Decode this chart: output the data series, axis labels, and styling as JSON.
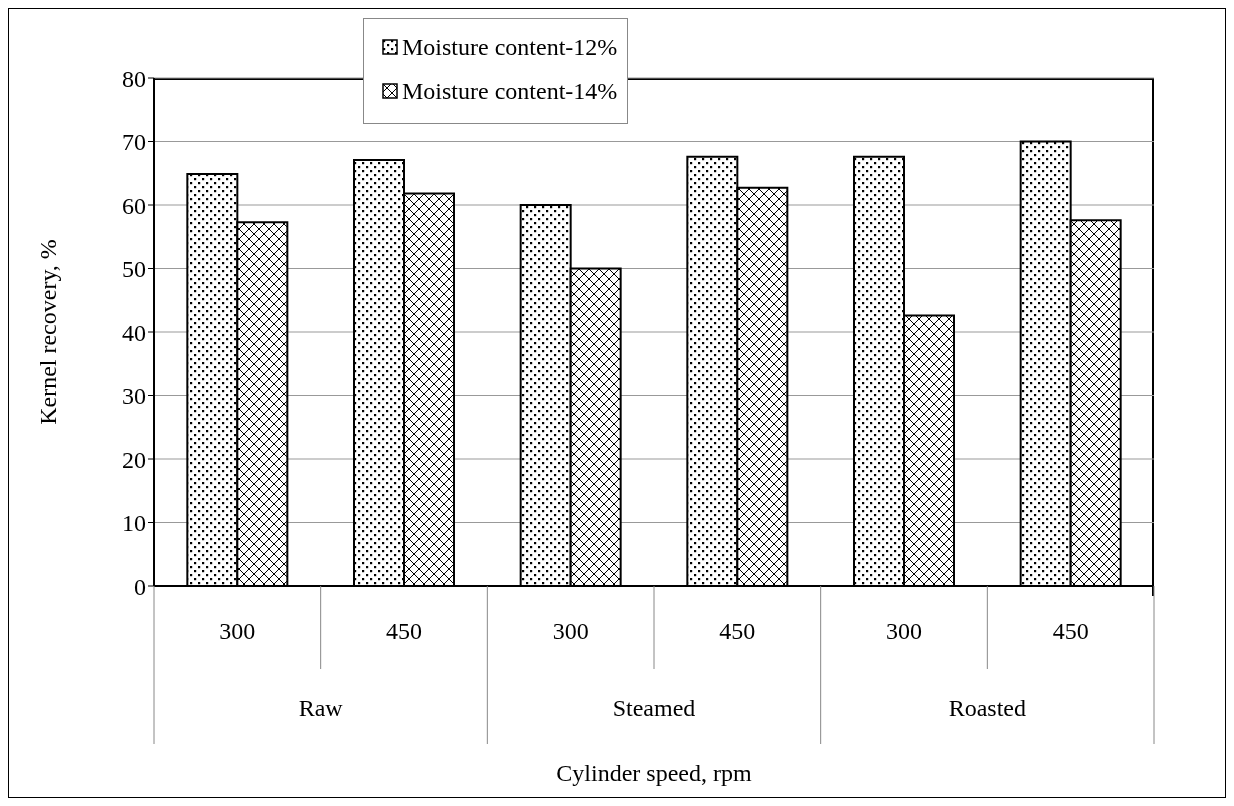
{
  "chart_data": {
    "type": "bar",
    "ylabel": "Kernel recovery, %",
    "xlabel": "Cylinder speed, rpm",
    "categories": [
      "300",
      "450",
      "300",
      "450",
      "300",
      "450"
    ],
    "annotations": [
      "Raw",
      "Steamed",
      "Roasted"
    ],
    "series": [
      {
        "name": "Moisture content-12%",
        "color": "#000000",
        "values": [
          64.9,
          67.1,
          60.0,
          67.6,
          67.6,
          70.0
        ]
      },
      {
        "name": "Moisture content-14%",
        "color": "#000000",
        "values": [
          57.3,
          61.8,
          50.0,
          62.7,
          42.6,
          57.6
        ]
      }
    ],
    "ylim": [
      0,
      80
    ],
    "yticks": [
      0,
      10,
      20,
      30,
      40,
      50,
      60,
      70,
      80
    ],
    "grid": "y",
    "legend": "top"
  }
}
